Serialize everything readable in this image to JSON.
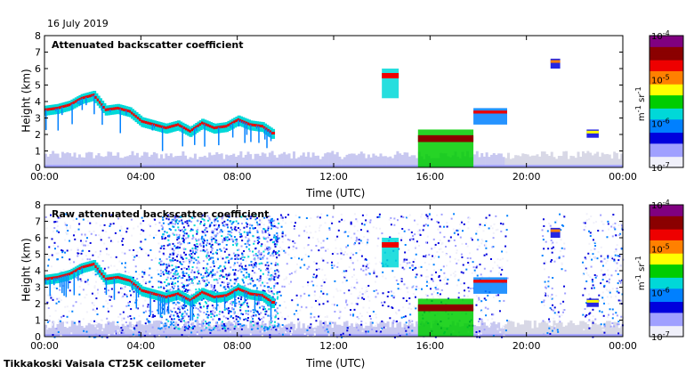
{
  "date": "16 July 2019",
  "footer": "Tikkakoski Vaisala CT25K ceilometer",
  "colors": {
    "background": "#ffffff",
    "colormap": [
      "#f0f0fa",
      "#a0a0ff",
      "#0000dd",
      "#0080ff",
      "#00d8d8",
      "#00cc00",
      "#ffff00",
      "#ff8000",
      "#ee0000",
      "#8b0000",
      "#800080"
    ]
  },
  "chart_data": [
    {
      "type": "heatmap",
      "title": "Attenuated backscatter coefficient",
      "xlabel": "Time (UTC)",
      "ylabel": "Height (km)",
      "x_ticks": [
        "00:00",
        "04:00",
        "08:00",
        "12:00",
        "16:00",
        "20:00",
        "00:00"
      ],
      "y_ticks": [
        "0",
        "1",
        "2",
        "3",
        "4",
        "5",
        "6",
        "7",
        "8"
      ],
      "xlim": [
        0,
        24
      ],
      "ylim": [
        0,
        8
      ],
      "colorbar": {
        "ticks": [
          "10-7",
          "10-6",
          "10-5",
          "10-4"
        ],
        "tick_labels": [
          {
            "base": "10",
            "exp": "-7"
          },
          {
            "base": "10",
            "exp": "-6"
          },
          {
            "base": "10",
            "exp": "-5"
          },
          {
            "base": "10",
            "exp": "-4"
          }
        ],
        "units": {
          "m": "m",
          "m_exp": "-1",
          "sr": "sr",
          "sr_exp": "-1"
        },
        "range": [
          -7,
          -4
        ],
        "scale": "log10"
      },
      "cloud_base_layer": {
        "time_h": [
          0,
          0.5,
          1,
          1.5,
          2,
          2.5,
          3,
          3.5,
          4,
          4.5,
          5,
          5.5,
          6,
          6.5,
          7,
          7.5,
          8,
          8.5,
          9,
          9.5
        ],
        "height_km": [
          3.5,
          3.6,
          3.8,
          4.2,
          4.4,
          3.5,
          3.6,
          3.4,
          2.8,
          2.6,
          2.4,
          2.6,
          2.2,
          2.7,
          2.4,
          2.5,
          2.9,
          2.6,
          2.5,
          2.0
        ]
      },
      "features": [
        {
          "name": "afternoon convective cloud",
          "time_h": [
            15.5,
            17.8
          ],
          "height_km": [
            0.0,
            2.3
          ],
          "log_beta": -5.2
        },
        {
          "name": "evening cloud layer",
          "time_h": [
            17.8,
            19.2
          ],
          "height_km": [
            2.6,
            3.6
          ],
          "log_beta": -5.6
        },
        {
          "name": "elevated layer",
          "time_h": [
            14.0,
            14.7
          ],
          "height_km": [
            4.2,
            6.0
          ],
          "log_beta": -5.5
        },
        {
          "name": "high layer",
          "time_h": [
            21.0,
            21.4
          ],
          "height_km": [
            6.0,
            6.6
          ],
          "log_beta": -5.8
        },
        {
          "name": "late low cloud",
          "time_h": [
            22.5,
            23.0
          ],
          "height_km": [
            1.8,
            2.3
          ],
          "log_beta": -6.0
        }
      ]
    },
    {
      "type": "heatmap",
      "title": "Raw attenuated backscatter coefficient",
      "xlabel": "Time (UTC)",
      "ylabel": "Height (km)",
      "x_ticks": [
        "00:00",
        "04:00",
        "08:00",
        "12:00",
        "16:00",
        "20:00",
        "00:00"
      ],
      "y_ticks": [
        "0",
        "1",
        "2",
        "3",
        "4",
        "5",
        "6",
        "7",
        "8"
      ],
      "xlim": [
        0,
        24
      ],
      "ylim": [
        0,
        8
      ],
      "colorbar": {
        "ticks": [
          "10-7",
          "10-6",
          "10-5",
          "10-4"
        ],
        "tick_labels": [
          {
            "base": "10",
            "exp": "-7"
          },
          {
            "base": "10",
            "exp": "-6"
          },
          {
            "base": "10",
            "exp": "-5"
          },
          {
            "base": "10",
            "exp": "-4"
          }
        ],
        "units": {
          "m": "m",
          "m_exp": "-1",
          "sr": "sr",
          "sr_exp": "-1"
        },
        "range": [
          -7,
          -4
        ],
        "scale": "log10"
      },
      "noise_region": {
        "time_h": [
          0,
          19.2
        ],
        "height_km": [
          0,
          7.5
        ],
        "log_beta": -6.6
      },
      "noise_free_gaps_h": [
        [
          19.2,
          20.6
        ],
        [
          21.6,
          22.3
        ]
      ]
    }
  ]
}
